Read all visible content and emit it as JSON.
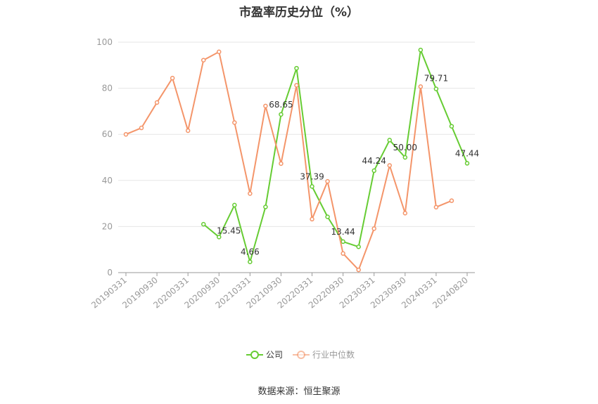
{
  "chart_data": {
    "type": "line",
    "title": "市盈率历史分位（%）",
    "xlabel": "",
    "ylabel": "",
    "ylim": [
      0,
      100
    ],
    "yticks": [
      0,
      20,
      40,
      60,
      80,
      100
    ],
    "grid": true,
    "legend_position": "bottom-center",
    "x": [
      "20190331",
      "20190630",
      "20190930",
      "20191231",
      "20200331",
      "20200630",
      "20200930",
      "20201231",
      "20210331",
      "20210630",
      "20210930",
      "20211231",
      "20220331",
      "20220630",
      "20220930",
      "20221231",
      "20230331",
      "20230630",
      "20230930",
      "20231231",
      "20240331",
      "20240630",
      "20240820"
    ],
    "x_tick_labels": [
      "20190331",
      "20190930",
      "20200331",
      "20200930",
      "20210331",
      "20210930",
      "20220331",
      "20220930",
      "20230331",
      "20230930",
      "20240331",
      "20240820"
    ],
    "series": [
      {
        "name": "公司",
        "color": "#66cc33",
        "values": [
          null,
          null,
          null,
          null,
          null,
          21.0,
          15.45,
          29.3,
          4.66,
          28.5,
          68.65,
          88.7,
          37.39,
          24.2,
          13.44,
          11.2,
          44.24,
          57.5,
          50.0,
          96.6,
          79.71,
          63.5,
          47.44
        ]
      },
      {
        "name": "行业中位数",
        "color": "#f4956a",
        "values": [
          60.0,
          62.8,
          73.8,
          84.4,
          61.6,
          92.2,
          95.8,
          65.1,
          34.3,
          72.3,
          47.3,
          81.3,
          23.2,
          39.6,
          8.3,
          1.2,
          19.1,
          46.5,
          25.8,
          80.7,
          28.4,
          31.2,
          null
        ]
      }
    ],
    "data_labels": [
      {
        "series": 0,
        "index": 6,
        "text": "15.45"
      },
      {
        "series": 0,
        "index": 8,
        "text": "4.66"
      },
      {
        "series": 0,
        "index": 10,
        "text": "68.65"
      },
      {
        "series": 0,
        "index": 12,
        "text": "37.39"
      },
      {
        "series": 0,
        "index": 14,
        "text": "13.44"
      },
      {
        "series": 0,
        "index": 16,
        "text": "44.24"
      },
      {
        "series": 0,
        "index": 18,
        "text": "50.00"
      },
      {
        "series": 0,
        "index": 20,
        "text": "79.71"
      },
      {
        "series": 0,
        "index": 22,
        "text": "47.44"
      }
    ]
  },
  "footer": {
    "source": "数据来源：恒生聚源"
  }
}
